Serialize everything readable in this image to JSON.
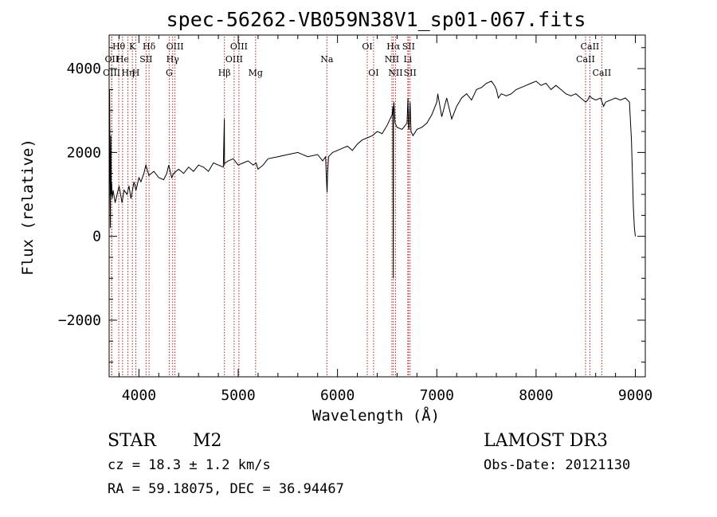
{
  "chart_data": {
    "type": "line",
    "title": "spec-56262-VB059N38V1_sp01-067.fits",
    "xlabel": "Wavelength (Å)",
    "ylabel": "Flux (relative)",
    "xlim": [
      3700,
      9100
    ],
    "ylim": [
      -3350,
      4800
    ],
    "x_ticks": [
      4000,
      5000,
      6000,
      7000,
      8000,
      9000
    ],
    "x_tick_labels": [
      "4000",
      "5000",
      "6000",
      "7000",
      "8000",
      "9000"
    ],
    "y_ticks": [
      -2000,
      0,
      2000,
      4000
    ],
    "y_tick_labels": [
      "−2000",
      "0",
      "2000",
      "4000"
    ],
    "series": [
      {
        "name": "flux",
        "x": [
          3700,
          3705,
          3712,
          3718,
          3722,
          3725,
          3730,
          3740,
          3760,
          3780,
          3800,
          3830,
          3850,
          3880,
          3900,
          3920,
          3950,
          3970,
          4000,
          4020,
          4050,
          4070,
          4100,
          4150,
          4200,
          4250,
          4280,
          4300,
          4330,
          4350,
          4400,
          4450,
          4500,
          4550,
          4600,
          4650,
          4700,
          4750,
          4800,
          4850,
          4860,
          4862,
          4864,
          4870,
          4900,
          4950,
          5000,
          5050,
          5100,
          5150,
          5180,
          5200,
          5250,
          5300,
          5400,
          5500,
          5600,
          5700,
          5800,
          5850,
          5880,
          5890,
          5895,
          5900,
          5910,
          5950,
          6000,
          6050,
          6100,
          6150,
          6200,
          6250,
          6300,
          6350,
          6400,
          6450,
          6500,
          6550,
          6558,
          6560,
          6562,
          6564,
          6568,
          6580,
          6600,
          6650,
          6700,
          6710,
          6716,
          6720,
          6731,
          6740,
          6760,
          6800,
          6850,
          6900,
          6950,
          7000,
          7010,
          7050,
          7100,
          7150,
          7200,
          7250,
          7300,
          7350,
          7400,
          7450,
          7500,
          7550,
          7580,
          7600,
          7620,
          7650,
          7700,
          7750,
          7800,
          7850,
          7900,
          7950,
          8000,
          8050,
          8100,
          8150,
          8200,
          8250,
          8300,
          8350,
          8400,
          8450,
          8500,
          8520,
          8540,
          8560,
          8600,
          8650,
          8680,
          8700,
          8750,
          8800,
          8850,
          8900,
          8940,
          8960,
          8980,
          8990,
          9000
        ],
        "y": [
          500,
          3500,
          200,
          2400,
          1000,
          1300,
          900,
          1100,
          800,
          1000,
          1200,
          800,
          1100,
          1000,
          1200,
          900,
          1300,
          1100,
          1400,
          1300,
          1500,
          1700,
          1450,
          1550,
          1400,
          1350,
          1500,
          1700,
          1400,
          1500,
          1600,
          1500,
          1650,
          1550,
          1700,
          1650,
          1550,
          1750,
          1700,
          1650,
          2800,
          1700,
          1750,
          1750,
          1800,
          1850,
          1700,
          1750,
          1800,
          1700,
          1750,
          1600,
          1700,
          1850,
          1900,
          1950,
          2000,
          1900,
          1950,
          1800,
          1900,
          1300,
          1050,
          1500,
          1900,
          2000,
          2050,
          2100,
          2150,
          2050,
          2200,
          2300,
          2350,
          2400,
          2500,
          2450,
          2650,
          2900,
          3100,
          1000,
          -1000,
          3000,
          3200,
          2700,
          2600,
          2550,
          2700,
          3300,
          2600,
          2550,
          3200,
          2500,
          2400,
          2550,
          2600,
          2700,
          2900,
          3200,
          3400,
          2850,
          3300,
          2800,
          3100,
          3300,
          3400,
          3250,
          3500,
          3550,
          3650,
          3700,
          3600,
          3500,
          3300,
          3400,
          3350,
          3400,
          3500,
          3550,
          3600,
          3650,
          3700,
          3600,
          3650,
          3500,
          3600,
          3500,
          3400,
          3350,
          3400,
          3300,
          3200,
          3250,
          3350,
          3300,
          3250,
          3300,
          3100,
          3200,
          3250,
          3300,
          3250,
          3300,
          3200,
          2300,
          700,
          200,
          0
        ]
      }
    ],
    "line_markers": [
      {
        "label": "Hθ",
        "wl": 3797,
        "row": 1
      },
      {
        "label": "OII",
        "wl": 3727,
        "row": 2
      },
      {
        "label": "OIII",
        "wl": 3725,
        "row": 3
      },
      {
        "label": "He",
        "wl": 3835,
        "row": 2
      },
      {
        "label": "Hη",
        "wl": 3889,
        "row": 3
      },
      {
        "label": "K",
        "wl": 3934,
        "row": 1
      },
      {
        "label": "H",
        "wl": 3969,
        "row": 3
      },
      {
        "label": "SII",
        "wl": 4072,
        "row": 2
      },
      {
        "label": "Hδ",
        "wl": 4102,
        "row": 1
      },
      {
        "label": "OIII",
        "wl": 4363,
        "row": 1
      },
      {
        "label": "Hγ",
        "wl": 4340,
        "row": 2
      },
      {
        "label": "G",
        "wl": 4305,
        "row": 3
      },
      {
        "label": "Hβ",
        "wl": 4861,
        "row": 3
      },
      {
        "label": "OIII",
        "wl": 5007,
        "row": 1
      },
      {
        "label": "OIII",
        "wl": 4959,
        "row": 2
      },
      {
        "label": "Mg",
        "wl": 5175,
        "row": 3
      },
      {
        "label": "Na",
        "wl": 5893,
        "row": 2
      },
      {
        "label": "OI",
        "wl": 6300,
        "row": 1
      },
      {
        "label": "OI",
        "wl": 6363,
        "row": 3
      },
      {
        "label": "Hα",
        "wl": 6563,
        "row": 1
      },
      {
        "label": "NII",
        "wl": 6548,
        "row": 2
      },
      {
        "label": "NII",
        "wl": 6584,
        "row": 3
      },
      {
        "label": "SII",
        "wl": 6716,
        "row": 1
      },
      {
        "label": "Li",
        "wl": 6708,
        "row": 2
      },
      {
        "label": "SII",
        "wl": 6731,
        "row": 3
      },
      {
        "label": "CaII",
        "wl": 8542,
        "row": 1
      },
      {
        "label": "CaII",
        "wl": 8498,
        "row": 2
      },
      {
        "label": "CaII",
        "wl": 8662,
        "row": 3
      }
    ]
  },
  "info": {
    "object_class": "STAR",
    "subclass": "M2",
    "survey": "LAMOST DR3",
    "redshift": "cz = 18.3 ± 1.2 km/s",
    "obs_date": "Obs-Date: 20121130",
    "coords": "RA =  59.18075, DEC =  36.94467"
  }
}
